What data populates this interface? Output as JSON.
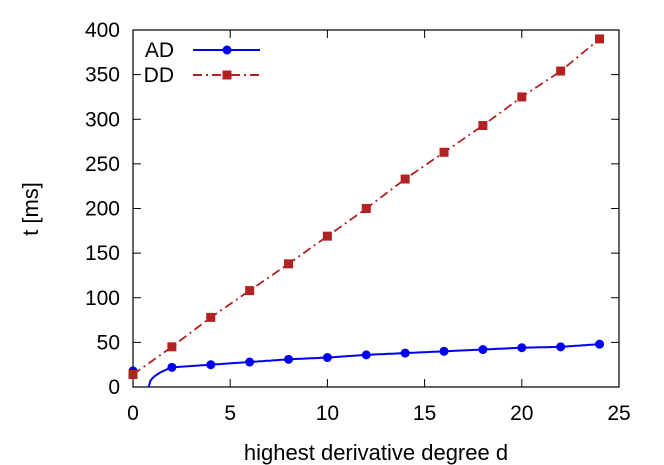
{
  "chart_data": {
    "type": "line",
    "title": "",
    "xlabel": "highest derivative degree d",
    "ylabel": "t [ms]",
    "xlim": [
      0,
      25
    ],
    "ylim": [
      0,
      400
    ],
    "xticks": [
      "0",
      "5",
      "10",
      "15",
      "20",
      "25"
    ],
    "yticks": [
      "0",
      "50",
      "100",
      "150",
      "200",
      "250",
      "300",
      "350",
      "400"
    ],
    "grid": false,
    "legend_position": "top-left",
    "series": [
      {
        "name": "AD",
        "color": "#0000ee",
        "marker": "circle",
        "line_style": "solid",
        "x": [
          0,
          2,
          4,
          6,
          8,
          10,
          12,
          14,
          16,
          18,
          20,
          22,
          24
        ],
        "y": [
          18,
          22,
          25,
          28,
          31,
          33,
          36,
          38,
          40,
          42,
          44,
          45,
          48
        ]
      },
      {
        "name": "DD",
        "color": "#b22222",
        "marker": "square",
        "line_style": "dash-dot",
        "x": [
          0,
          2,
          4,
          6,
          8,
          10,
          12,
          14,
          16,
          18,
          20,
          22,
          24
        ],
        "y": [
          14,
          45,
          78,
          108,
          138,
          169,
          200,
          233,
          263,
          293,
          325,
          354,
          390
        ]
      }
    ]
  }
}
